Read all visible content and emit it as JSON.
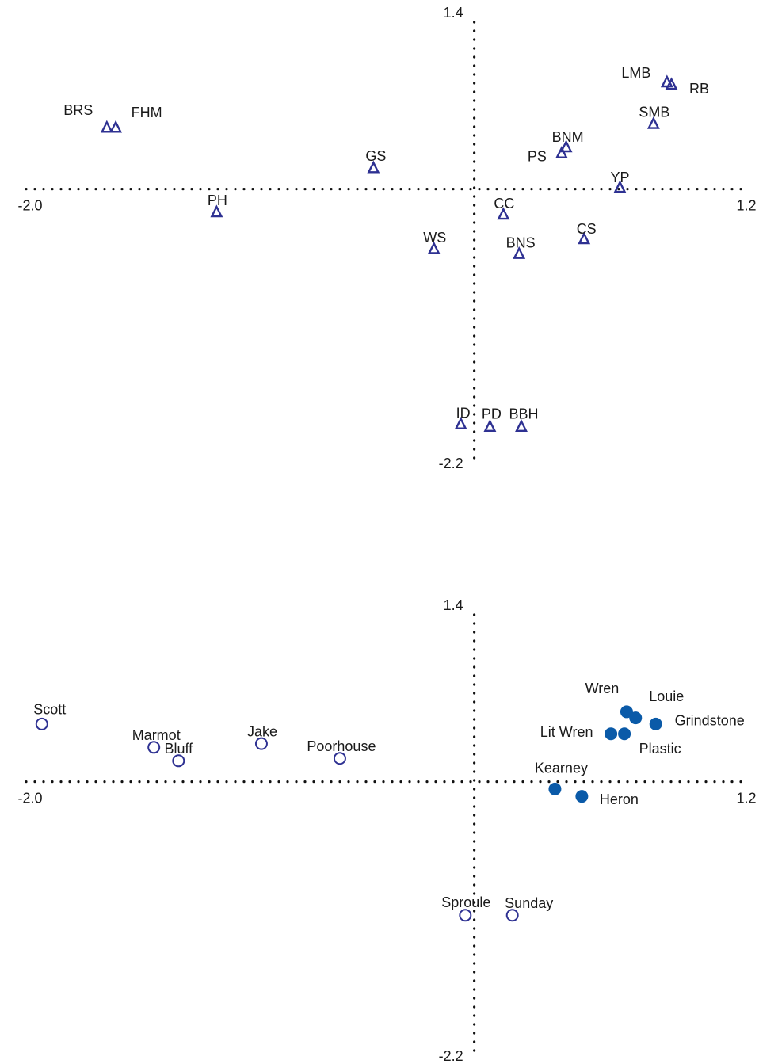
{
  "chart_data": [
    {
      "type": "scatter",
      "xlim": [
        -2.0,
        1.2
      ],
      "xticks": [
        {
          "value": -2.0,
          "label": "-2.0"
        },
        1.2
      ],
      "ylim": [
        -2.2,
        1.4
      ],
      "yticks": [
        -2.2,
        1.4
      ],
      "series": [
        {
          "marker": "triangle-open",
          "color": "#2e3192",
          "labels": [
            "BRS",
            "FHM",
            "GS",
            "PH",
            "LMB",
            "RB",
            "SMB",
            "BNM",
            "PS",
            "YP",
            "CC",
            "CS",
            "BNS",
            "WS",
            "ID",
            "PD",
            "BBH"
          ],
          "x": [
            -1.64,
            -1.6,
            -0.45,
            -1.15,
            0.86,
            0.88,
            0.8,
            0.41,
            0.39,
            0.65,
            0.13,
            0.49,
            0.2,
            -0.18,
            -0.06,
            0.07,
            0.21
          ],
          "values": [
            0.5,
            0.5,
            0.17,
            -0.19,
            0.87,
            0.85,
            0.53,
            0.34,
            0.29,
            0.01,
            -0.21,
            -0.41,
            -0.53,
            -0.49,
            -1.92,
            -1.94,
            -1.94
          ]
        }
      ]
    },
    {
      "type": "scatter",
      "xlim": [
        -2.0,
        1.2
      ],
      "xticks": [
        {
          "value": -2.0,
          "label": "-2.0"
        },
        1.2
      ],
      "ylim": [
        -2.2,
        1.4
      ],
      "yticks": [
        -2.2,
        1.4
      ],
      "series": [
        {
          "marker": "circle-open",
          "color": "#2e3192",
          "labels": [
            "Scott",
            "Marmot",
            "Bluff",
            "Jake",
            "Poorhouse",
            "Sproule",
            "Sunday"
          ],
          "x": [
            -1.93,
            -1.43,
            -1.32,
            -0.95,
            -0.6,
            -0.04,
            0.17
          ],
          "values": [
            0.47,
            0.28,
            0.17,
            0.31,
            0.19,
            -1.09,
            -1.09
          ]
        },
        {
          "marker": "circle-filled",
          "color": "#0a5aa8",
          "labels": [
            "Wren",
            "Louie",
            "Grindstone",
            "Lit Wren",
            "Plastic",
            "Kearney",
            "Heron"
          ],
          "x": [
            0.68,
            0.72,
            0.81,
            0.61,
            0.67,
            0.36,
            0.48
          ],
          "values": [
            0.57,
            0.52,
            0.47,
            0.39,
            0.39,
            -0.06,
            -0.12
          ]
        }
      ]
    }
  ]
}
